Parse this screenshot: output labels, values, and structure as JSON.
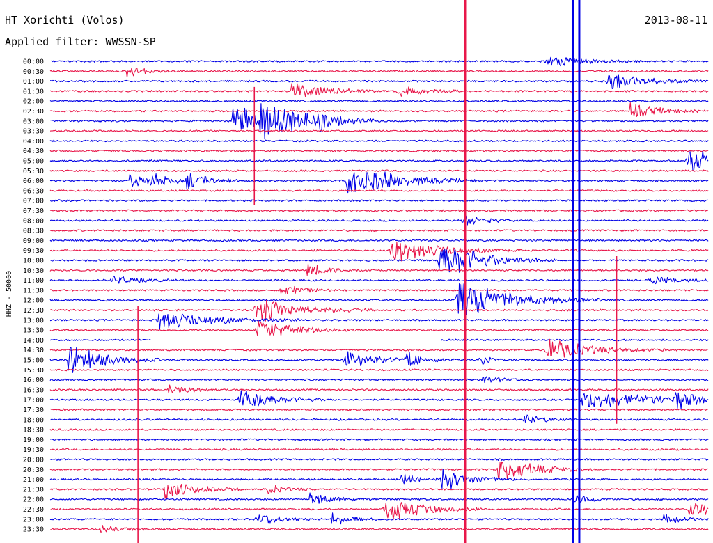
{
  "header": {
    "title": "HT Xorichti (Volos)",
    "date": "2013-08-11",
    "filter": "Applied filter: WWSSN-SP"
  },
  "chart_data": {
    "type": "line",
    "subtype": "helicorder",
    "ylabel": "HHZ - 50000",
    "rows": [
      "00:00",
      "00:30",
      "01:00",
      "01:30",
      "02:00",
      "02:30",
      "03:00",
      "03:30",
      "04:00",
      "04:30",
      "05:00",
      "05:30",
      "06:00",
      "06:30",
      "07:00",
      "07:30",
      "08:00",
      "08:30",
      "09:00",
      "09:30",
      "10:00",
      "10:30",
      "11:00",
      "11:30",
      "12:00",
      "12:30",
      "13:00",
      "13:30",
      "14:00",
      "14:30",
      "15:00",
      "15:30",
      "16:00",
      "16:30",
      "17:00",
      "17:30",
      "18:00",
      "18:30",
      "19:00",
      "19:30",
      "20:00",
      "20:30",
      "21:00",
      "21:30",
      "22:00",
      "22:30",
      "23:00",
      "23:30"
    ],
    "colors": [
      "#0000e6",
      "#e8174a"
    ],
    "minutes_per_row": 30,
    "events": [
      {
        "row": 0,
        "minute": 22.6,
        "amp": 1.5,
        "dur": 1.4
      },
      {
        "row": 1,
        "minute": 3.5,
        "amp": 1.4,
        "dur": 0.8
      },
      {
        "row": 2,
        "minute": 25.4,
        "amp": 2.0,
        "dur": 1.5
      },
      {
        "row": 3,
        "minute": 11.0,
        "amp": 2.4,
        "dur": 1.3
      },
      {
        "row": 3,
        "minute": 15.8,
        "amp": 1.6,
        "dur": 1.0
      },
      {
        "row": 5,
        "minute": 26.4,
        "amp": 1.8,
        "dur": 1.2
      },
      {
        "row": 6,
        "minute": 9.5,
        "amp": 4.5,
        "dur": 1.8
      },
      {
        "row": 6,
        "minute": 8.3,
        "amp": 3.5,
        "dur": 1.5
      },
      {
        "row": 6,
        "minute": 12.2,
        "amp": 1.4,
        "dur": 1.0
      },
      {
        "row": 10,
        "minute": 29.0,
        "amp": 3.0,
        "dur": 1.5
      },
      {
        "row": 12,
        "minute": 13.5,
        "amp": 4.0,
        "dur": 2.0
      },
      {
        "row": 12,
        "minute": 6.2,
        "amp": 1.6,
        "dur": 1.0
      },
      {
        "row": 12,
        "minute": 3.6,
        "amp": 1.5,
        "dur": 0.8
      },
      {
        "row": 12,
        "minute": 4.5,
        "amp": 1.6,
        "dur": 1.0
      },
      {
        "row": 16,
        "minute": 18.8,
        "amp": 1.5,
        "dur": 0.8
      },
      {
        "row": 19,
        "minute": 15.5,
        "amp": 3.0,
        "dur": 2.0
      },
      {
        "row": 20,
        "minute": 17.7,
        "amp": 4.5,
        "dur": 1.8
      },
      {
        "row": 21,
        "minute": 11.7,
        "amp": 1.4,
        "dur": 1.0
      },
      {
        "row": 22,
        "minute": 2.8,
        "amp": 1.1,
        "dur": 1.0
      },
      {
        "row": 22,
        "minute": 27.3,
        "amp": 1.1,
        "dur": 1.0
      },
      {
        "row": 23,
        "minute": 10.5,
        "amp": 1.2,
        "dur": 1.0
      },
      {
        "row": 24,
        "minute": 18.5,
        "amp": 4.5,
        "dur": 2.2
      },
      {
        "row": 25,
        "minute": 9.3,
        "amp": 3.0,
        "dur": 1.8
      },
      {
        "row": 26,
        "minute": 4.8,
        "amp": 2.4,
        "dur": 2.2
      },
      {
        "row": 27,
        "minute": 9.4,
        "amp": 2.6,
        "dur": 1.5
      },
      {
        "row": 29,
        "minute": 22.6,
        "amp": 2.4,
        "dur": 1.8
      },
      {
        "row": 30,
        "minute": 0.8,
        "amp": 3.5,
        "dur": 1.5
      },
      {
        "row": 30,
        "minute": 13.4,
        "amp": 2.6,
        "dur": 1.2
      },
      {
        "row": 30,
        "minute": 16.2,
        "amp": 1.6,
        "dur": 0.8
      },
      {
        "row": 30,
        "minute": 19.5,
        "amp": 1.6,
        "dur": 0.6
      },
      {
        "row": 32,
        "minute": 19.7,
        "amp": 1.1,
        "dur": 0.8
      },
      {
        "row": 33,
        "minute": 5.4,
        "amp": 1.4,
        "dur": 0.8
      },
      {
        "row": 34,
        "minute": 8.6,
        "amp": 3.0,
        "dur": 1.3
      },
      {
        "row": 34,
        "minute": 24.2,
        "amp": 2.0,
        "dur": 3.5
      },
      {
        "row": 34,
        "minute": 28.4,
        "amp": 1.6,
        "dur": 1.0
      },
      {
        "row": 36,
        "minute": 21.6,
        "amp": 1.2,
        "dur": 0.8
      },
      {
        "row": 41,
        "minute": 20.4,
        "amp": 2.8,
        "dur": 1.5
      },
      {
        "row": 42,
        "minute": 17.8,
        "amp": 2.6,
        "dur": 1.2
      },
      {
        "row": 42,
        "minute": 15.9,
        "amp": 1.4,
        "dur": 0.8
      },
      {
        "row": 43,
        "minute": 5.2,
        "amp": 2.4,
        "dur": 1.2
      },
      {
        "row": 43,
        "minute": 9.9,
        "amp": 1.1,
        "dur": 0.7
      },
      {
        "row": 44,
        "minute": 11.8,
        "amp": 1.5,
        "dur": 1.0
      },
      {
        "row": 44,
        "minute": 23.8,
        "amp": 1.2,
        "dur": 0.8
      },
      {
        "row": 45,
        "minute": 15.2,
        "amp": 3.0,
        "dur": 1.5
      },
      {
        "row": 45,
        "minute": 29.1,
        "amp": 2.0,
        "dur": 1.0
      },
      {
        "row": 46,
        "minute": 9.4,
        "amp": 1.4,
        "dur": 1.0
      },
      {
        "row": 46,
        "minute": 12.8,
        "amp": 1.4,
        "dur": 0.8
      },
      {
        "row": 46,
        "minute": 27.9,
        "amp": 1.0,
        "dur": 0.8
      },
      {
        "row": 47,
        "minute": 2.3,
        "amp": 1.0,
        "dur": 0.8
      }
    ],
    "spikes": [
      {
        "minute": 18.9,
        "row_start": 0,
        "row_end": 47,
        "color": "#e8174a"
      },
      {
        "minute": 23.8,
        "row_start": 0,
        "row_end": 47,
        "color": "#0000e6"
      },
      {
        "minute": 24.1,
        "row_start": 0,
        "row_end": 47,
        "color": "#0000e6"
      },
      {
        "minute": 9.3,
        "row_start": 3,
        "row_end": 14,
        "color": "#e8174a"
      },
      {
        "minute": 4.0,
        "row_start": 25,
        "row_end": 47,
        "color": "#e8174a"
      },
      {
        "minute": 25.8,
        "row_start": 20,
        "row_end": 36,
        "color": "#e8174a"
      }
    ],
    "gaps": [
      {
        "row": 28,
        "minute_start": 4.6,
        "minute_end": 17.8
      }
    ]
  }
}
